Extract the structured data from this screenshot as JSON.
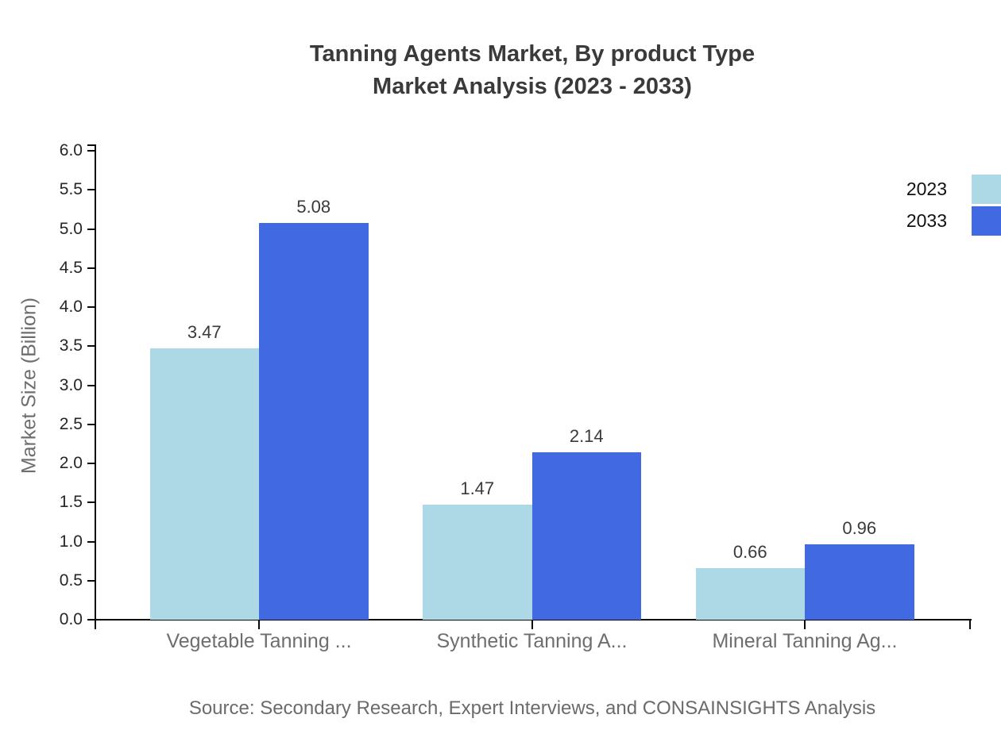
{
  "title": {
    "line1": "Tanning Agents Market, By product Type",
    "line2": "Market Analysis (2023 - 2033)"
  },
  "source": "Source: Secondary Research, Expert Interviews, and CONSAINSIGHTS Analysis",
  "chart_data": {
    "type": "bar",
    "title": "Tanning Agents Market, By product Type Market Analysis (2023 - 2033)",
    "categories": [
      "Vegetable Tanning ...",
      "Synthetic Tanning A...",
      "Mineral Tanning Ag..."
    ],
    "series": [
      {
        "name": "2023",
        "color": "#ADD8E6",
        "values": [
          3.47,
          1.47,
          0.66
        ]
      },
      {
        "name": "2033",
        "color": "#4169E1",
        "values": [
          5.08,
          2.14,
          0.96
        ]
      }
    ],
    "xlabel": "",
    "ylabel": "Market Size (Billion)",
    "ylim": [
      0,
      6
    ],
    "ytick_step": 0.5,
    "ytick_labels": [
      "0.0",
      "0.5",
      "1.0",
      "1.5",
      "2.0",
      "2.5",
      "3.0",
      "3.5",
      "4.0",
      "4.5",
      "5.0",
      "5.5",
      "6.0"
    ],
    "grid": false,
    "legend_position": "top-right",
    "value_labels": true
  },
  "colors": {
    "series_2023": "#ADD8E6",
    "series_2033": "#4169E1",
    "title_text": "#3A3A3A",
    "tick_text": "#262626",
    "category_text": "#6E6E6E",
    "muted_text": "#6B6B6B",
    "axis_line": "#0A0A0A"
  }
}
